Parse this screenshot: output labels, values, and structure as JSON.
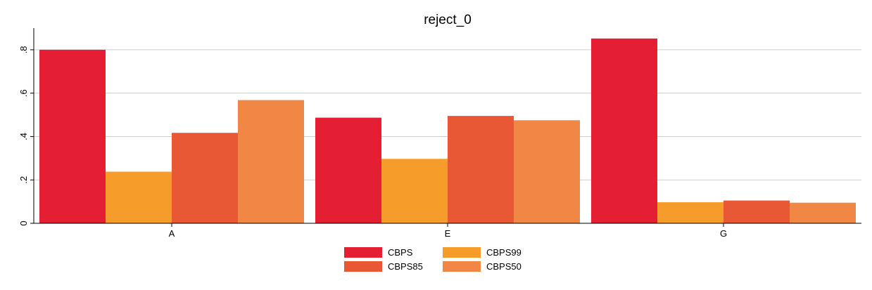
{
  "chart_data": {
    "type": "bar",
    "title": "reject_0",
    "categories": [
      "A",
      "E",
      "G"
    ],
    "series": [
      {
        "name": "CBPS",
        "color": "#e41e33",
        "values": [
          0.8,
          0.487,
          0.852
        ]
      },
      {
        "name": "CBPS99",
        "color": "#f59c2a",
        "values": [
          0.238,
          0.297,
          0.097
        ]
      },
      {
        "name": "CBPS85",
        "color": "#e95835",
        "values": [
          0.417,
          0.495,
          0.105
        ]
      },
      {
        "name": "CBPS50",
        "color": "#f08744",
        "values": [
          0.568,
          0.475,
          0.095
        ]
      }
    ],
    "ylim": [
      0,
      0.9
    ],
    "yticks": [
      0,
      0.2,
      0.4,
      0.6,
      0.8
    ],
    "ytick_labels": [
      "0",
      ".2",
      ".4",
      ".6",
      ".8"
    ],
    "grid": true,
    "legend_position": "bottom-center",
    "legend_order": [
      "CBPS",
      "CBPS99",
      "CBPS85",
      "CBPS50"
    ]
  }
}
